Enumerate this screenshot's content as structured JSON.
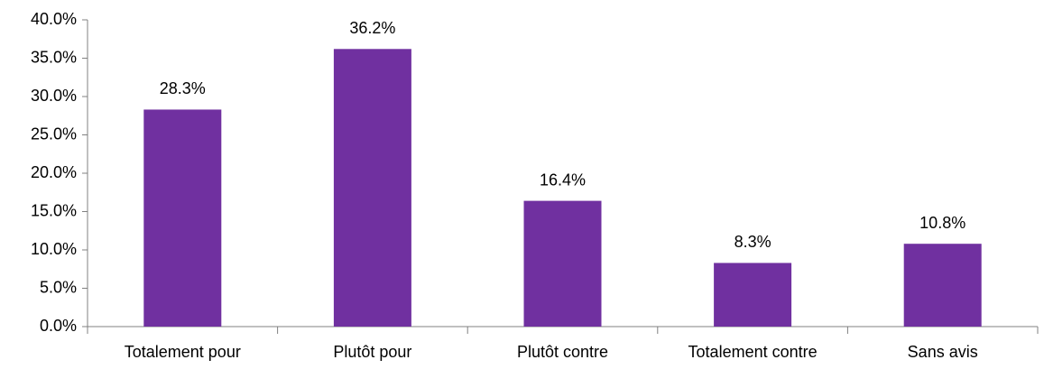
{
  "chart_data": {
    "type": "bar",
    "categories": [
      "Totalement pour",
      "Plutôt pour",
      "Plutôt contre",
      "Totalement contre",
      "Sans avis"
    ],
    "values": [
      28.3,
      36.2,
      16.4,
      8.3,
      10.8
    ],
    "value_labels": [
      "28.3%",
      "36.2%",
      "16.4%",
      "8.3%",
      "10.8%"
    ],
    "color": "#7030a0",
    "ylim": [
      0,
      40
    ],
    "yticks": [
      {
        "value": 0,
        "label": "0.0%"
      },
      {
        "value": 5,
        "label": "5.0%"
      },
      {
        "value": 10,
        "label": "10.0%"
      },
      {
        "value": 15,
        "label": "15.0%"
      },
      {
        "value": 20,
        "label": "20.0%"
      },
      {
        "value": 25,
        "label": "25.0%"
      },
      {
        "value": 30,
        "label": "30.0%"
      },
      {
        "value": 35,
        "label": "35.0%"
      },
      {
        "value": 40,
        "label": "40.0%"
      }
    ],
    "grid": false
  }
}
